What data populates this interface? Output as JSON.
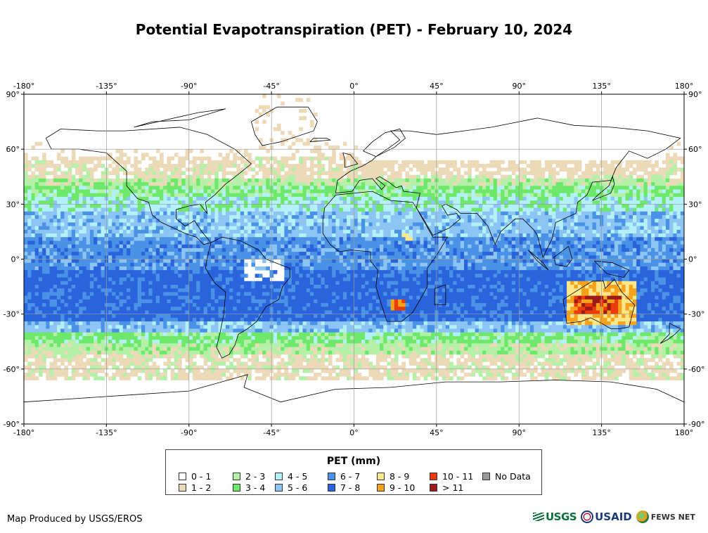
{
  "title": "Potential Evapotranspiration (PET) - February 10, 2024",
  "map": {
    "lon_ticks": [
      "-180°",
      "-135°",
      "-90°",
      "-45°",
      "0°",
      "45°",
      "90°",
      "135°",
      "180°"
    ],
    "lat_ticks_left": [
      "90°",
      "60°",
      "30°",
      "0°",
      "-30°",
      "-60°",
      "-90°"
    ],
    "lat_ticks_right": [
      "90°",
      "60°",
      "30°",
      "0°",
      "-30°",
      "-60°",
      "-90°"
    ],
    "lon_range": [
      -180,
      180
    ],
    "lat_range": [
      -90,
      90
    ],
    "grid": true
  },
  "legend": {
    "title": "PET (mm)",
    "items": [
      {
        "label": "0 - 1",
        "color": "#ffffff"
      },
      {
        "label": "1 - 2",
        "color": "#ecd9b8"
      },
      {
        "label": "2 - 3",
        "color": "#b5f0a8"
      },
      {
        "label": "3 - 4",
        "color": "#6ee86a"
      },
      {
        "label": "4 - 5",
        "color": "#b3f0f8"
      },
      {
        "label": "5 - 6",
        "color": "#8cc4f4"
      },
      {
        "label": "6 - 7",
        "color": "#4a92e6"
      },
      {
        "label": "7 - 8",
        "color": "#2a64dc"
      },
      {
        "label": "8 - 9",
        "color": "#fce68a"
      },
      {
        "label": "9 - 10",
        "color": "#f6a21a"
      },
      {
        "label": "10 - 11",
        "color": "#ec3a0a"
      },
      {
        "label": "> 11",
        "color": "#9c1a1a"
      },
      {
        "label": "No Data",
        "color": "#999999"
      }
    ]
  },
  "credit": "Map Produced by USGS/EROS",
  "logos": {
    "usgs": "USGS",
    "usaid": "USAID",
    "fews": "FEWS NET"
  },
  "colors": {
    "land_outline": "#000000",
    "grid": "#999999"
  }
}
